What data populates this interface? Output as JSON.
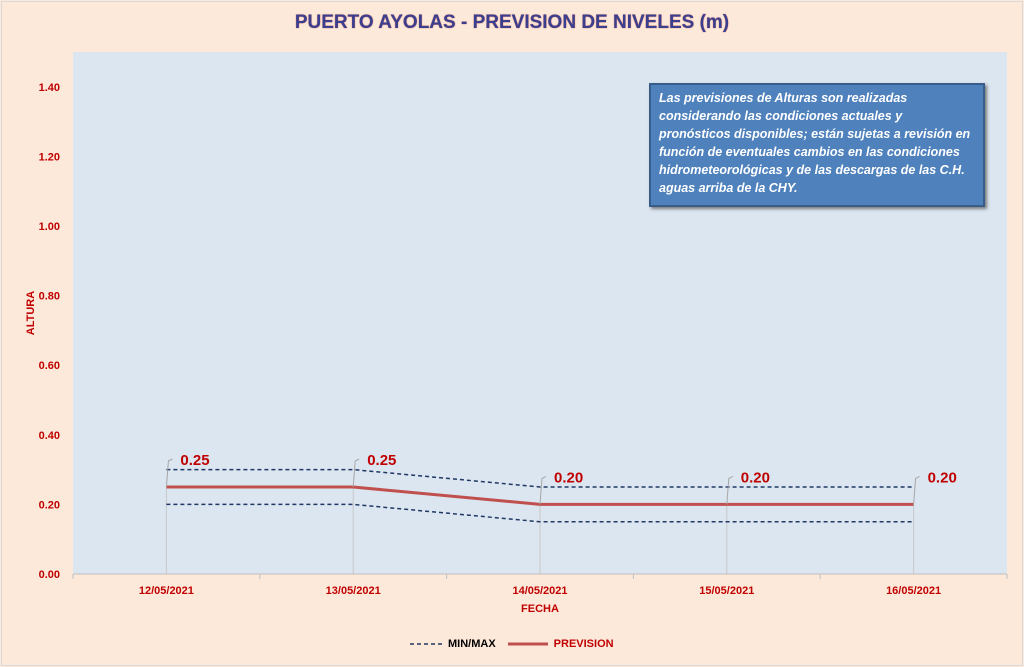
{
  "chart_data": {
    "type": "line",
    "title": "PUERTO AYOLAS - PREVISION DE NIVELES (m)",
    "xlabel": "FECHA",
    "ylabel": "ALTURA",
    "categories": [
      "12/05/2021",
      "13/05/2021",
      "14/05/2021",
      "15/05/2021",
      "16/05/2021"
    ],
    "ylim": [
      0,
      1.5
    ],
    "yticks": [
      "0.00",
      "0.20",
      "0.40",
      "0.60",
      "0.80",
      "1.00",
      "1.20",
      "1.40"
    ],
    "series": [
      {
        "name": "PREVISION",
        "values": [
          0.25,
          0.25,
          0.2,
          0.2,
          0.2
        ],
        "color": "#c0504d",
        "data_labels": [
          "0.25",
          "0.25",
          "0.20",
          "0.20",
          "0.20"
        ]
      },
      {
        "name": "MIN/MAX",
        "role": "max",
        "values": [
          0.3,
          0.3,
          0.25,
          0.25,
          0.25
        ],
        "color": "#1f3864"
      },
      {
        "name": "MIN/MAX",
        "role": "min",
        "values": [
          0.2,
          0.2,
          0.15,
          0.15,
          0.15
        ],
        "color": "#1f3864"
      }
    ],
    "legend": [
      "MIN/MAX",
      "PREVISION"
    ],
    "legend_position": "bottom",
    "annotation": "Las previsiones de Alturas son realizadas considerando las condiciones actuales y pronósticos disponibles;  están sujetas a revisión en función de eventuales cambios en las condiciones hidrometeorológicas y de las descargas de las C.H. aguas arriba de la CHY."
  }
}
